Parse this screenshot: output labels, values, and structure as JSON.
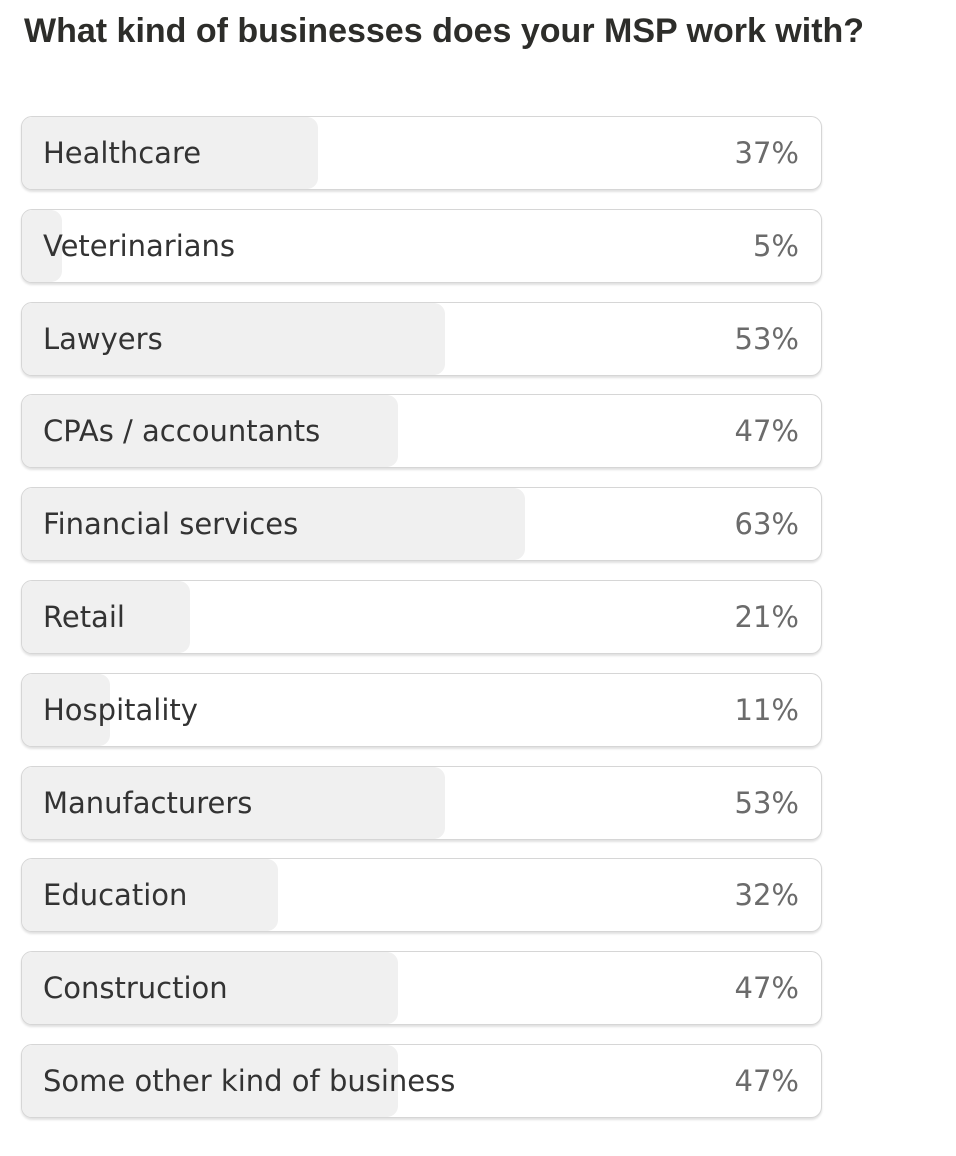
{
  "chart_data": {
    "type": "bar",
    "orientation": "horizontal",
    "title": "What kind of businesses does your MSP work with?",
    "categories": [
      "Healthcare",
      "Veterinarians",
      "Lawyers",
      "CPAs / accountants",
      "Financial services",
      "Retail",
      "Hospitality",
      "Manufacturers",
      "Education",
      "Construction",
      "Some other kind of business"
    ],
    "values": [
      37,
      5,
      53,
      47,
      63,
      21,
      11,
      53,
      32,
      47,
      47
    ],
    "value_labels": [
      "37%",
      "5%",
      "53%",
      "47%",
      "63%",
      "21%",
      "11%",
      "53%",
      "32%",
      "47%",
      "47%"
    ],
    "xlim": [
      0,
      100
    ],
    "color": "#f0f0f0"
  }
}
